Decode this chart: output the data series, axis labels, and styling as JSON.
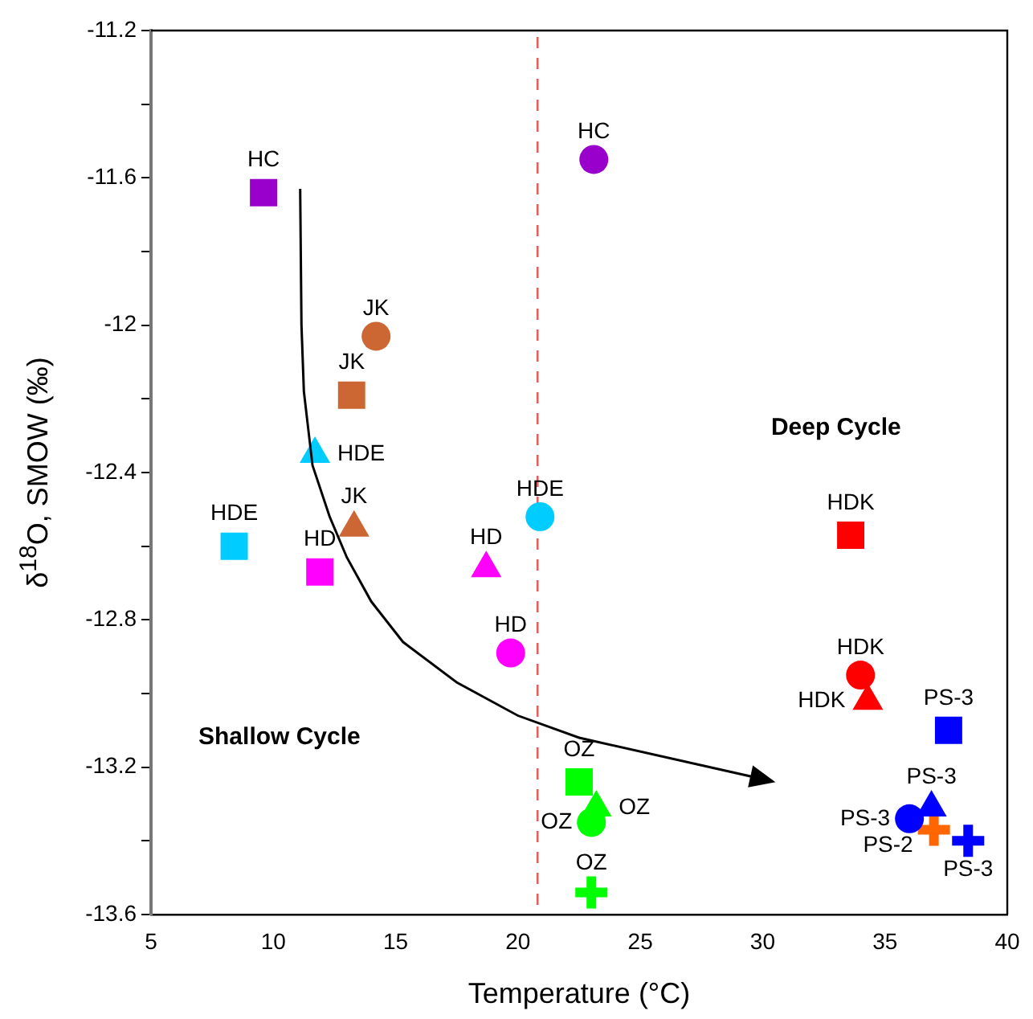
{
  "chart_data": {
    "type": "scatter",
    "xlabel": "Temperature (°C)",
    "ylabel": "δ$^{18}$O, SMOW (‰)",
    "xlim": [
      5,
      40
    ],
    "xticks": [
      5,
      10,
      15,
      20,
      25,
      30,
      35,
      40
    ],
    "ylim": [
      -13.6,
      -11.2
    ],
    "yticks": [
      -13.6,
      {
        "value": -13.4,
        "label": null
      },
      -13.2,
      {
        "value": -13,
        "label": null
      },
      -12.8,
      {
        "value": -12.6,
        "label": null
      },
      -12.4,
      {
        "value": -12.2,
        "label": null
      },
      -12,
      {
        "value": -11.8,
        "label": null
      },
      -11.6,
      {
        "value": -11.4,
        "label": null
      },
      -11.2
    ],
    "grid": false,
    "legend": false,
    "ref_lines": [
      {
        "axis": "x",
        "value": 20.8,
        "color": "#e06060",
        "line_style": "dashed"
      }
    ],
    "annotations": [
      "Shallow Cycle",
      "Deep Cycle"
    ],
    "series": [
      {
        "name": "HC",
        "color": "#9900cc",
        "marker": "square",
        "x": [
          9.6
        ],
        "values": [
          -11.64
        ]
      },
      {
        "name": "HC",
        "color": "#9900cc",
        "marker": "circle",
        "x": [
          23.1
        ],
        "values": [
          -11.55
        ]
      },
      {
        "name": "JK",
        "color": "#cc6633",
        "marker": "circle",
        "x": [
          14.2
        ],
        "values": [
          -12.03
        ]
      },
      {
        "name": "JK",
        "color": "#cc6633",
        "marker": "square",
        "x": [
          13.2
        ],
        "values": [
          -12.19
        ]
      },
      {
        "name": "HDE",
        "color": "#00ccff",
        "marker": "triangle",
        "x": [
          11.7
        ],
        "values": [
          -12.35
        ]
      },
      {
        "name": "JK",
        "color": "#cc6633",
        "marker": "triangle",
        "x": [
          13.3
        ],
        "values": [
          -12.55
        ]
      },
      {
        "name": "HDE",
        "color": "#00ccff",
        "marker": "square",
        "x": [
          8.4
        ],
        "values": [
          -12.6
        ]
      },
      {
        "name": "HD",
        "color": "#ff00ff",
        "marker": "square",
        "x": [
          11.9
        ],
        "values": [
          -12.67
        ]
      },
      {
        "name": "HD",
        "color": "#ff00ff",
        "marker": "triangle",
        "x": [
          18.7
        ],
        "values": [
          -12.66
        ]
      },
      {
        "name": "HD",
        "color": "#ff00ff",
        "marker": "circle",
        "x": [
          19.7
        ],
        "values": [
          -12.89
        ]
      },
      {
        "name": "HDE",
        "color": "#00ccff",
        "marker": "circle",
        "x": [
          20.9
        ],
        "values": [
          -12.52
        ]
      },
      {
        "name": "HDK",
        "color": "#ff0000",
        "marker": "square",
        "x": [
          33.6
        ],
        "values": [
          -12.57
        ]
      },
      {
        "name": "HDK",
        "color": "#ff0000",
        "marker": "circle",
        "x": [
          34
        ],
        "values": [
          -12.95
        ]
      },
      {
        "name": "HDK",
        "color": "#ff0000",
        "marker": "triangle",
        "x": [
          34.3
        ],
        "values": [
          -13.02
        ]
      },
      {
        "name": "PS-3",
        "color": "#0000ff",
        "marker": "square",
        "x": [
          37.6
        ],
        "values": [
          -13.1
        ]
      },
      {
        "name": "PS-3",
        "color": "#0000ff",
        "marker": "triangle",
        "x": [
          36.9
        ],
        "values": [
          -13.31
        ]
      },
      {
        "name": "PS-3",
        "color": "#0000ff",
        "marker": "circle",
        "x": [
          36
        ],
        "values": [
          -13.34
        ]
      },
      {
        "name": "PS-2",
        "color": "#ff6600",
        "marker": "cross",
        "x": [
          37
        ],
        "values": [
          -13.37
        ]
      },
      {
        "name": "PS-3",
        "color": "#0000ff",
        "marker": "cross",
        "x": [
          38.4
        ],
        "values": [
          -13.4
        ]
      },
      {
        "name": "OZ",
        "color": "#00ff00",
        "marker": "square",
        "x": [
          22.5
        ],
        "values": [
          -13.24
        ]
      },
      {
        "name": "OZ",
        "color": "#00ff00",
        "marker": "triangle",
        "x": [
          23.2
        ],
        "values": [
          -13.31
        ]
      },
      {
        "name": "OZ",
        "color": "#00ff00",
        "marker": "circle",
        "x": [
          23
        ],
        "values": [
          -13.35
        ]
      },
      {
        "name": "OZ",
        "color": "#00ff00",
        "marker": "cross",
        "x": [
          23
        ],
        "values": [
          -13.54
        ]
      }
    ]
  }
}
